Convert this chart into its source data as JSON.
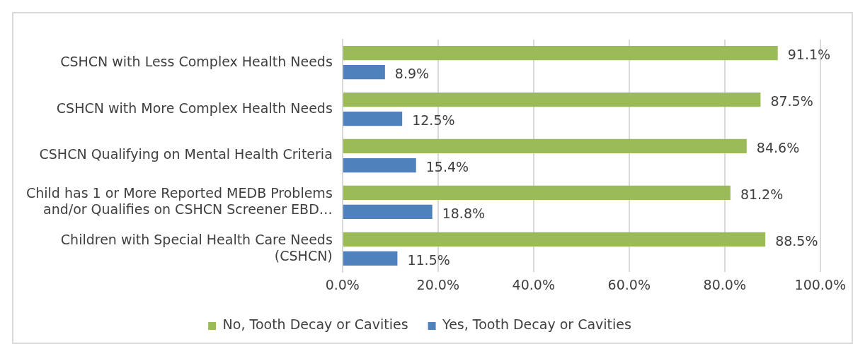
{
  "chart_data": {
    "type": "bar",
    "orientation": "horizontal",
    "categories": [
      "CSHCN with Less Complex Health Needs",
      "CSHCN with More Complex Health Needs",
      "CSHCN Qualifying on Mental Health Criteria",
      "Child has 1 or More Reported MEDB Problems and/or Qualifies on CSHCN Screener EBD…",
      "Children with Special Health Care Needs (CSHCN)"
    ],
    "series": [
      {
        "name": "No, Tooth Decay or Cavities",
        "color": "#9bbb59",
        "values": [
          91.1,
          87.5,
          84.6,
          81.2,
          88.5
        ],
        "value_labels": [
          "91.1%",
          "87.5%",
          "84.6%",
          "81.2%",
          "88.5%"
        ]
      },
      {
        "name": "Yes, Tooth Decay or Cavities",
        "color": "#4f81bd",
        "values": [
          8.9,
          12.5,
          15.4,
          18.8,
          11.5
        ],
        "value_labels": [
          "8.9%",
          "12.5%",
          "15.4%",
          "18.8%",
          "11.5%"
        ]
      }
    ],
    "xlim": [
      0,
      100
    ],
    "xticks": [
      {
        "value": 0,
        "label": "0.0%"
      },
      {
        "value": 20,
        "label": "20.0%"
      },
      {
        "value": 40,
        "label": "40.0%"
      },
      {
        "value": 60,
        "label": "60.0%"
      },
      {
        "value": 80,
        "label": "80.0%"
      },
      {
        "value": 100,
        "label": "100.0%"
      }
    ],
    "grid": "x",
    "legend": "bottom"
  }
}
